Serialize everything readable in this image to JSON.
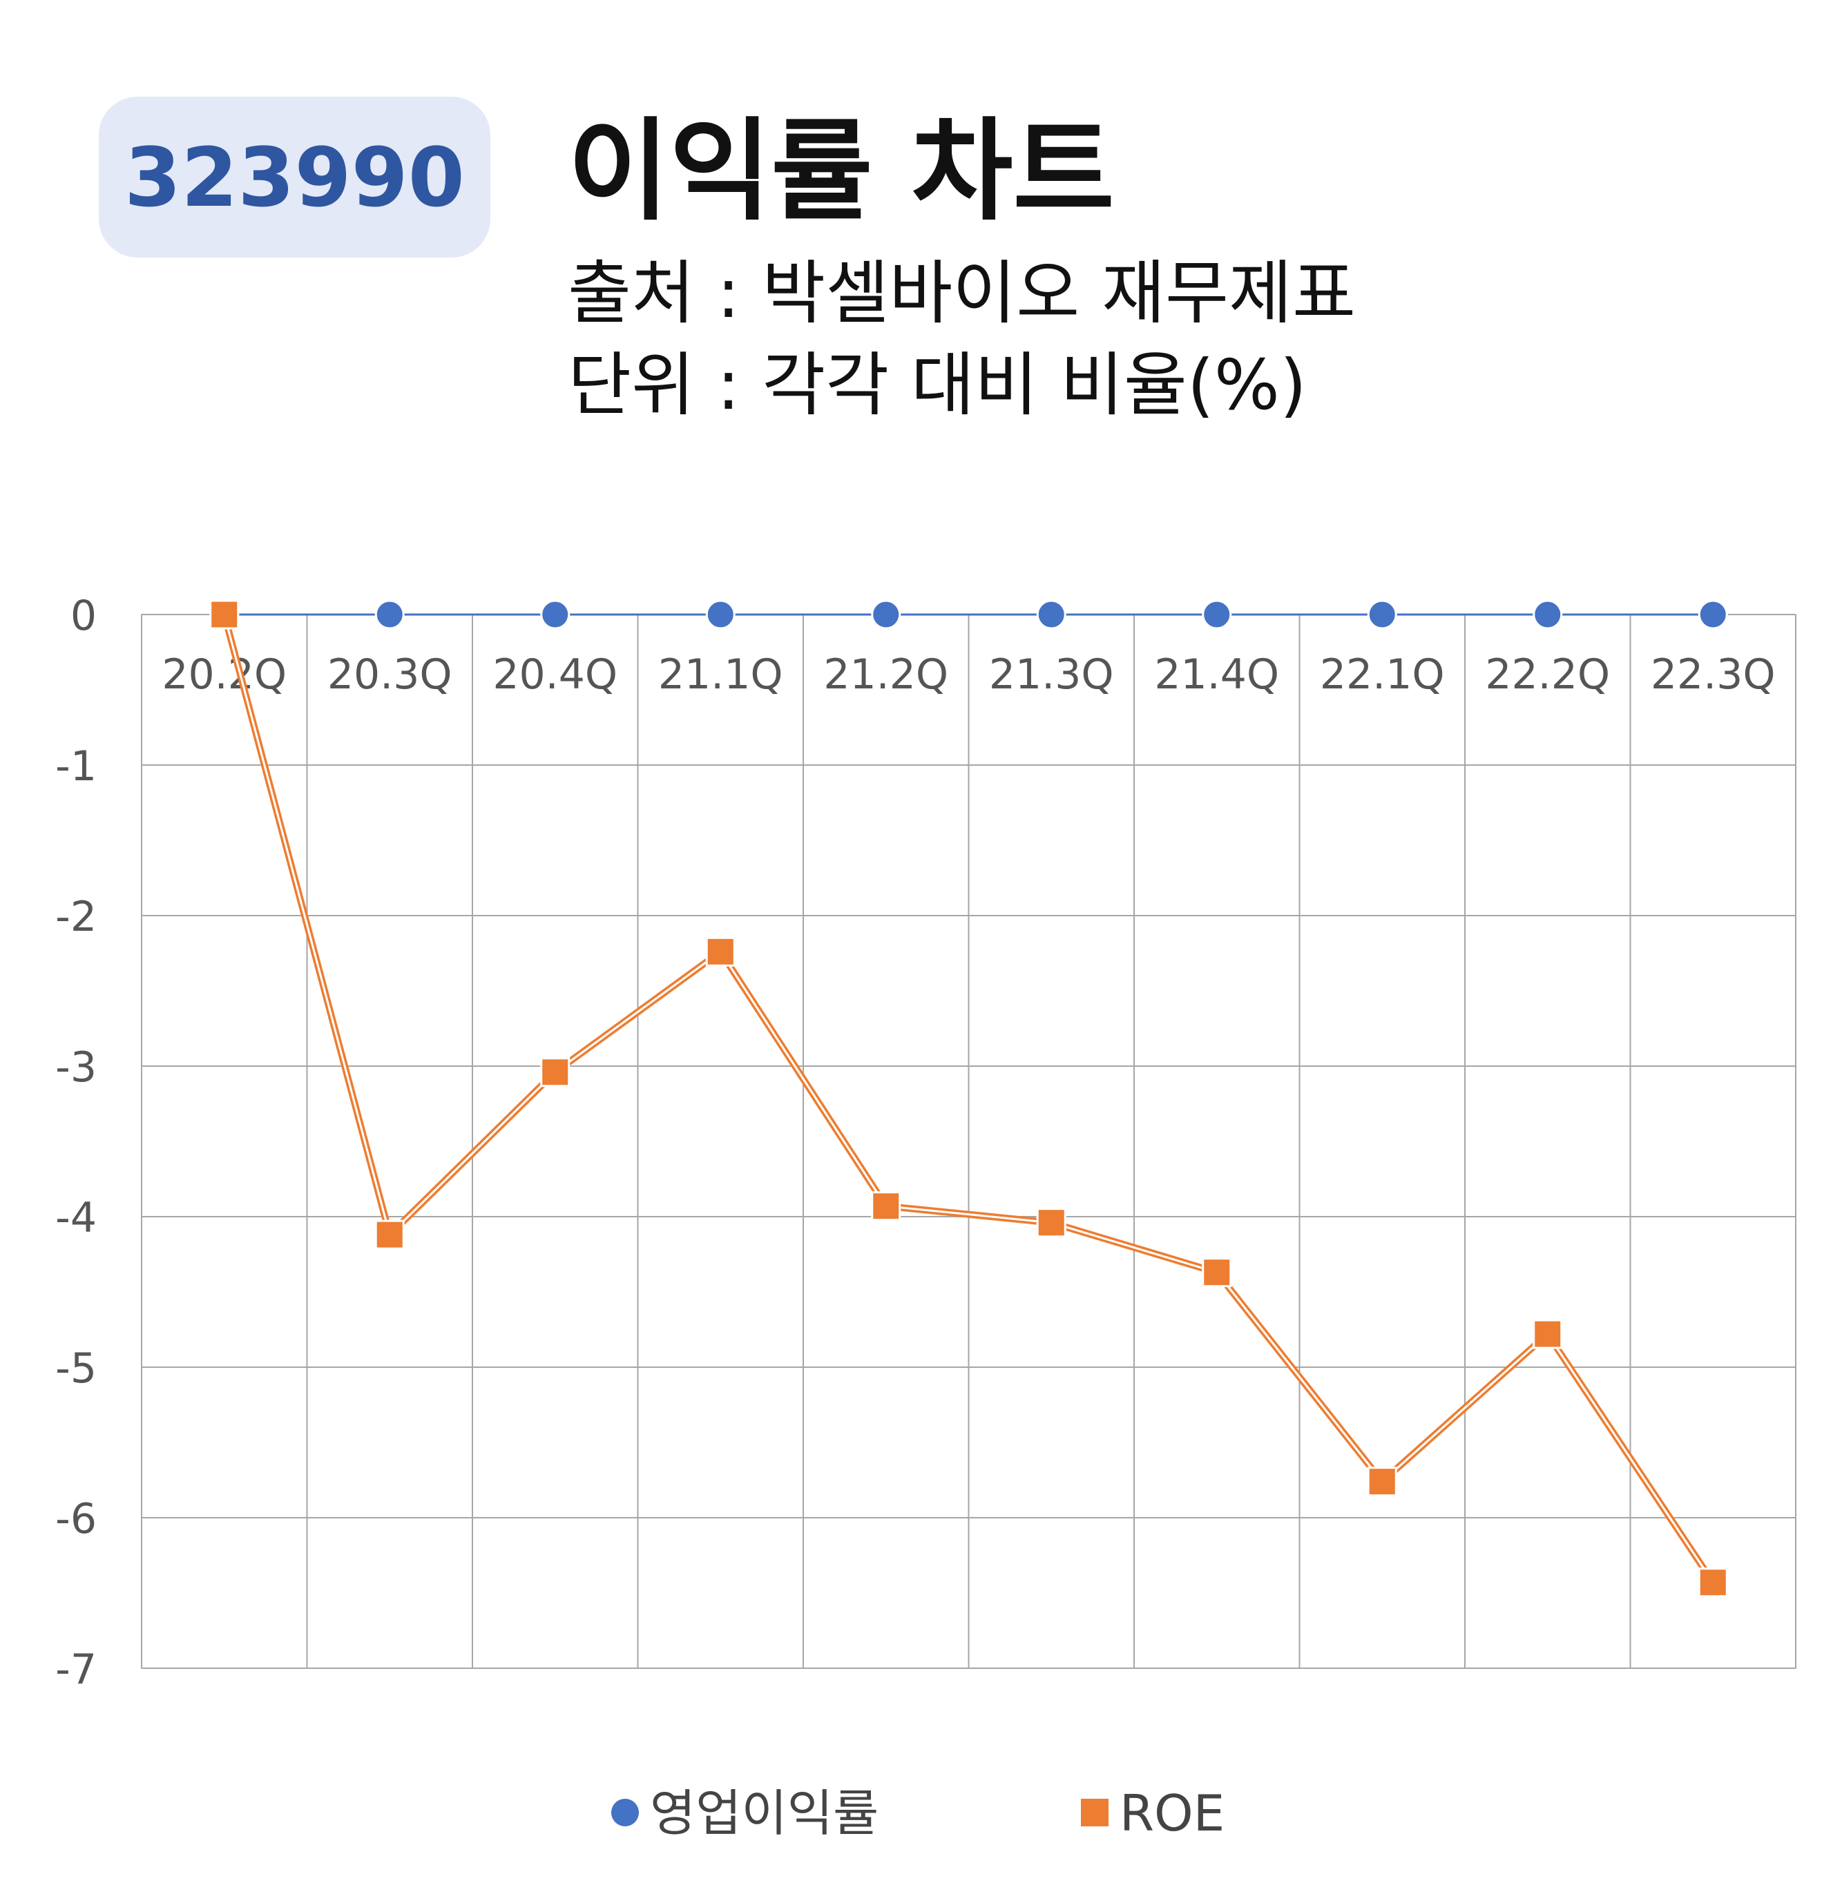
{
  "header": {
    "code": "323990",
    "title": "이익률 차트",
    "source": "출처 : 박셀바이오 재무제표",
    "unit": "단위 : 각각 대비 비율(%)"
  },
  "chart_data": {
    "type": "line",
    "categories": [
      "20.2Q",
      "20.3Q",
      "20.4Q",
      "21.1Q",
      "21.2Q",
      "21.3Q",
      "21.4Q",
      "22.1Q",
      "22.2Q",
      "22.3Q"
    ],
    "ylim": [
      -7,
      0
    ],
    "yticks": [
      0,
      -1,
      -2,
      -3,
      -4,
      -5,
      -6,
      -7
    ],
    "grid": true,
    "legend": "bottom",
    "series": [
      {
        "name": "영업이익률",
        "color": "#4472c4",
        "marker": "circle",
        "values": [
          0,
          0,
          0,
          0,
          0,
          0,
          0,
          0,
          0,
          0
        ]
      },
      {
        "name": "ROE",
        "color": "#ed7d31",
        "marker": "square",
        "values": [
          0,
          -4.12,
          -3.04,
          -2.24,
          -3.93,
          -4.04,
          -4.37,
          -5.76,
          -4.78,
          -6.43
        ]
      }
    ]
  }
}
